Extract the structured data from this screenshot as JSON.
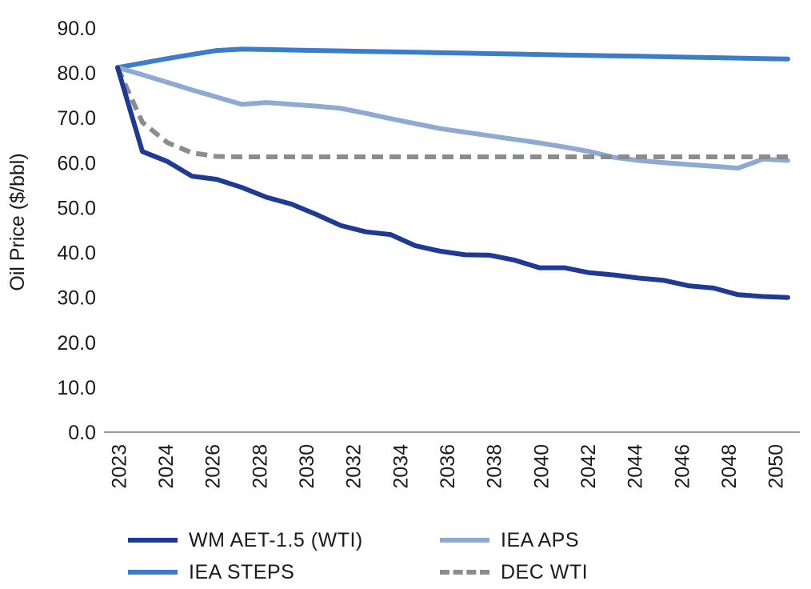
{
  "chart_data": {
    "type": "line",
    "title": "",
    "xlabel": "",
    "ylabel": "Oil Price ($/bbl)",
    "ylim": [
      0,
      90
    ],
    "yticks": [
      "0.0",
      "10.0",
      "20.0",
      "30.0",
      "40.0",
      "50.0",
      "60.0",
      "70.0",
      "80.0",
      "90.0"
    ],
    "xlim": [
      2023,
      2050
    ],
    "xticks": [
      "2023",
      "2024",
      "2026",
      "2028",
      "2030",
      "2032",
      "2034",
      "2036",
      "2038",
      "2040",
      "2042",
      "2044",
      "2046",
      "2048",
      "2050"
    ],
    "grid": false,
    "legend_position": "bottom",
    "x": [
      2023,
      2024,
      2025,
      2026,
      2027,
      2028,
      2029,
      2030,
      2031,
      2032,
      2033,
      2034,
      2035,
      2036,
      2037,
      2038,
      2039,
      2040,
      2041,
      2042,
      2043,
      2044,
      2045,
      2046,
      2047,
      2048,
      2049,
      2050
    ],
    "series": [
      {
        "name": "WM AET-1.5 (WTI)",
        "color": "#1f3a93",
        "dash": "solid",
        "values": [
          81.2,
          62.5,
          60.3,
          57.0,
          56.3,
          54.5,
          52.3,
          50.8,
          48.5,
          46.0,
          44.6,
          44.0,
          41.5,
          40.3,
          39.5,
          39.4,
          38.3,
          36.6,
          36.6,
          35.5,
          35.0,
          34.3,
          33.8,
          32.6,
          32.1,
          30.6,
          30.2,
          30.0
        ]
      },
      {
        "name": "IEA STEPS",
        "color": "#3b7dc8",
        "dash": "solid",
        "values": [
          81.2,
          82.2,
          83.2,
          84.1,
          85.0,
          85.3,
          85.2,
          85.1,
          85.0,
          84.9,
          84.8,
          84.7,
          84.6,
          84.5,
          84.4,
          84.3,
          84.2,
          84.1,
          84.0,
          83.9,
          83.8,
          83.7,
          83.6,
          83.5,
          83.4,
          83.3,
          83.2,
          83.1
        ]
      },
      {
        "name": "IEA APS",
        "color": "#8faad2",
        "dash": "solid",
        "values": [
          81.2,
          79.6,
          77.9,
          76.2,
          74.6,
          73.0,
          73.4,
          73.0,
          72.6,
          72.1,
          71.0,
          69.8,
          68.7,
          67.6,
          66.8,
          66.0,
          65.2,
          64.4,
          63.5,
          62.5,
          61.2,
          60.5,
          60.0,
          59.6,
          59.2,
          58.8,
          60.8,
          60.5
        ]
      },
      {
        "name": "DEC WTI",
        "color": "#8c8c8c",
        "dash": "dashed",
        "values": [
          81.2,
          69.0,
          64.5,
          62.2,
          61.4,
          61.3,
          61.3,
          61.3,
          61.3,
          61.3,
          61.3,
          61.3,
          61.3,
          61.3,
          61.3,
          61.3,
          61.3,
          61.3,
          61.3,
          61.3,
          61.3,
          61.3,
          61.3,
          61.3,
          61.3,
          61.3,
          61.3,
          61.3
        ]
      }
    ]
  }
}
